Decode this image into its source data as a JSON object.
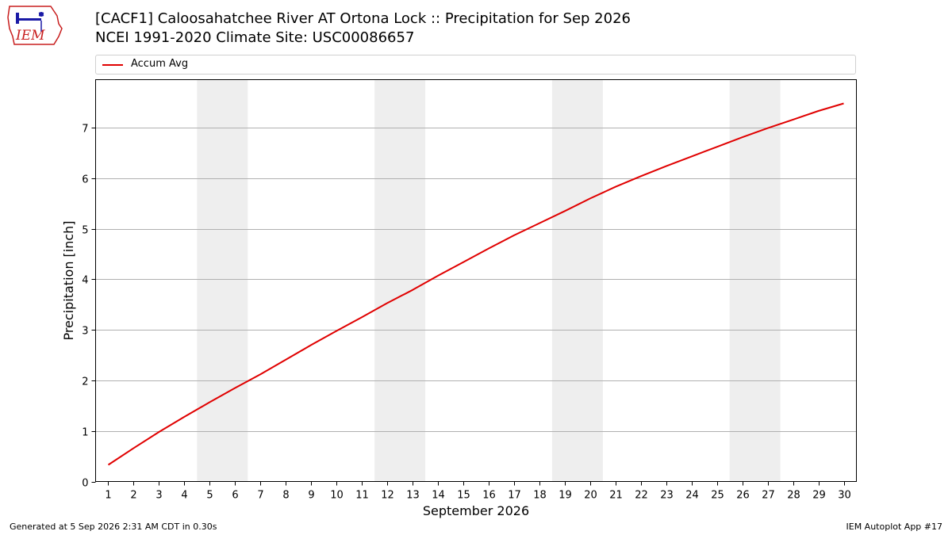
{
  "header": {
    "title_line1": "[CACF1] Caloosahatchee River  AT Ortona Lock :: Precipitation for Sep 2026",
    "title_line2": "NCEI 1991-2020 Climate Site: USC00086657",
    "logo_text": "IEM"
  },
  "footer": {
    "generated": "Generated at 5 Sep 2026 2:31 AM CDT in 0.30s",
    "app": "IEM Autoplot App #17"
  },
  "colors": {
    "line": "#e00000",
    "weekend_shade": "#eeeeee",
    "grid": "#b0b0b0",
    "logo_red": "#c81e1e",
    "logo_blue": "#1a1aa6"
  },
  "chart_data": {
    "type": "line",
    "xlabel": "September 2026",
    "ylabel": "Precipitation [inch]",
    "xlim": [
      0.5,
      30.5
    ],
    "ylim": [
      0,
      7.95
    ],
    "x_ticks": [
      1,
      2,
      3,
      4,
      5,
      6,
      7,
      8,
      9,
      10,
      11,
      12,
      13,
      14,
      15,
      16,
      17,
      18,
      19,
      20,
      21,
      22,
      23,
      24,
      25,
      26,
      27,
      28,
      29,
      30
    ],
    "y_ticks": [
      0,
      1,
      2,
      3,
      4,
      5,
      6,
      7
    ],
    "grid": "horizontal",
    "legend_position": "top",
    "shaded_weekends": [
      [
        5,
        6
      ],
      [
        12,
        13
      ],
      [
        19,
        20
      ],
      [
        26,
        27
      ]
    ],
    "series": [
      {
        "name": "Accum Avg",
        "x": [
          1,
          2,
          3,
          4,
          5,
          6,
          7,
          8,
          9,
          10,
          11,
          12,
          13,
          14,
          15,
          16,
          17,
          18,
          19,
          20,
          21,
          22,
          23,
          24,
          25,
          26,
          27,
          28,
          29,
          30
        ],
        "values": [
          0.33,
          0.66,
          0.98,
          1.28,
          1.57,
          1.85,
          2.12,
          2.41,
          2.7,
          2.98,
          3.25,
          3.53,
          3.79,
          4.07,
          4.34,
          4.61,
          4.87,
          5.11,
          5.35,
          5.6,
          5.83,
          6.04,
          6.24,
          6.43,
          6.62,
          6.81,
          6.99,
          7.16,
          7.33,
          7.48
        ]
      }
    ]
  }
}
